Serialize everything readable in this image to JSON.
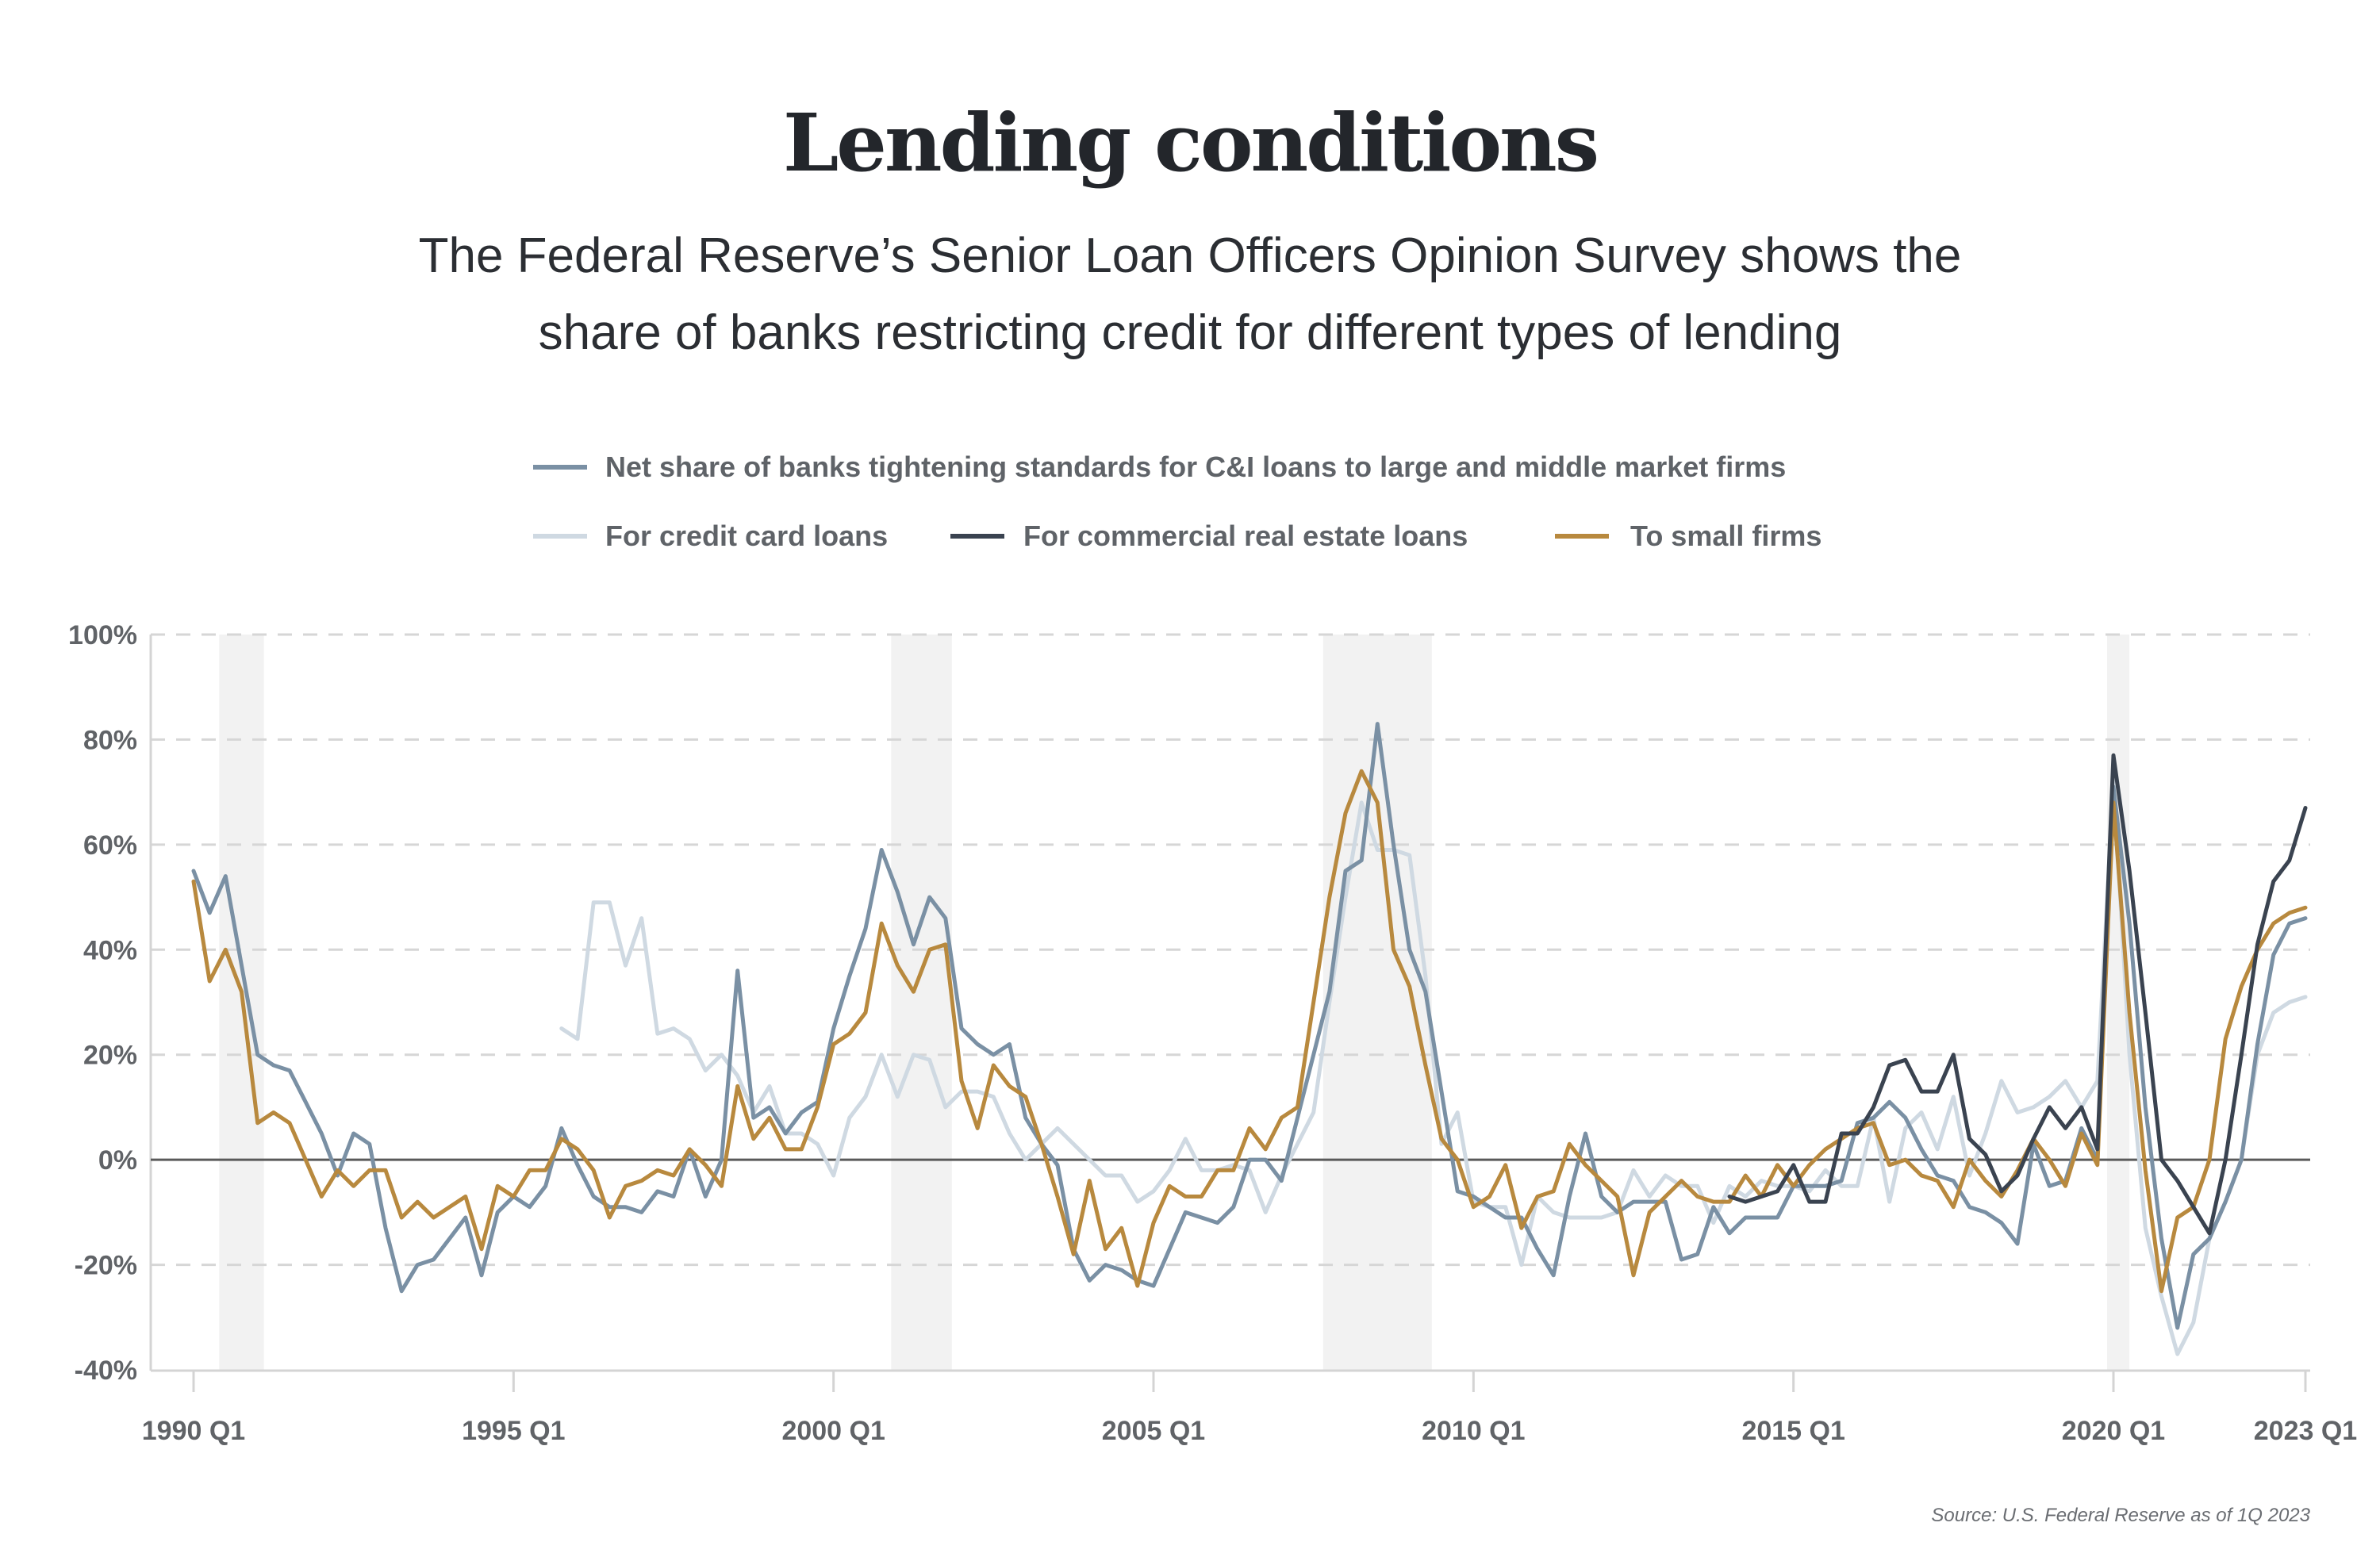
{
  "title": "Lending conditions",
  "subtitle_lines": [
    "The Federal Reserve’s Senior Loan Officers Opinion Survey shows the",
    "share of banks restricting credit for different types of lending"
  ],
  "source": "Source: U.S. Federal Reserve as of 1Q 2023",
  "chart_data": {
    "type": "line",
    "title": "Lending conditions",
    "xlabel": "",
    "ylabel": "",
    "x_start": "1990 Q1",
    "x_end": "2023 Q1",
    "x_frequency": "quarterly",
    "x_ticks": [
      {
        "label": "1990 Q1",
        "index": 0
      },
      {
        "label": "1995 Q1",
        "index": 20
      },
      {
        "label": "2000 Q1",
        "index": 40
      },
      {
        "label": "2005 Q1",
        "index": 60
      },
      {
        "label": "2010 Q1",
        "index": 80
      },
      {
        "label": "2015 Q1",
        "index": 100
      },
      {
        "label": "2020 Q1",
        "index": 120
      },
      {
        "label": "2023 Q1",
        "index": 132
      }
    ],
    "ylim": [
      -40,
      100
    ],
    "y_ticks": [
      {
        "label": "100%",
        "value": 100
      },
      {
        "label": "80%",
        "value": 80
      },
      {
        "label": "60%",
        "value": 60
      },
      {
        "label": "40%",
        "value": 40
      },
      {
        "label": "20%",
        "value": 20
      },
      {
        "label": "0%",
        "value": 0
      },
      {
        "label": "-20%",
        "value": -20
      },
      {
        "label": "-40%",
        "value": -40
      }
    ],
    "grid": true,
    "legend_placement": "top-center",
    "recessions": [
      {
        "from": "1990 Q3",
        "to": "1991 Q1",
        "start_index": 2,
        "end_index": 4
      },
      {
        "from": "2001 Q1",
        "to": "2001 Q4",
        "start_index": 44,
        "end_index": 47
      },
      {
        "from": "2007 Q4",
        "to": "2009 Q2",
        "start_index": 71,
        "end_index": 77
      },
      {
        "from": "2020 Q1",
        "to": "2020 Q2",
        "start_index": 120,
        "end_index": 120.6
      }
    ],
    "series": [
      {
        "name": "Net share of banks tightening standards for C&I loans to large and middle market firms",
        "color": "#7a90a4",
        "start_index": 0,
        "values": [
          55,
          47,
          54,
          37,
          20,
          18,
          17,
          11,
          5,
          -3,
          5,
          3,
          -13,
          -25,
          -20,
          -19,
          -15,
          -11,
          -22,
          -10,
          -7,
          -9,
          -5,
          6,
          -1,
          -7,
          -9,
          -9,
          -10,
          -6,
          -7,
          2,
          -7,
          0,
          36,
          8,
          10,
          5,
          9,
          11,
          25,
          35,
          44,
          59,
          51,
          41,
          50,
          46,
          25,
          22,
          20,
          22,
          8,
          3,
          -1,
          -17,
          -23,
          -20,
          -21,
          -23,
          -24,
          -17,
          -10,
          -11,
          -12,
          -9,
          0,
          0,
          -4,
          8,
          20,
          32,
          55,
          57,
          83,
          60,
          40,
          32,
          13,
          -6,
          -7,
          -9,
          -11,
          -11,
          -17,
          -22,
          -7,
          5,
          -7,
          -10,
          -8,
          -8,
          -8,
          -19,
          -18,
          -9,
          -14,
          -11,
          -11,
          -11,
          -5,
          -5,
          -5,
          -4,
          7,
          8,
          11,
          8,
          2,
          -3,
          -4,
          -9,
          -10,
          -12,
          -16,
          3,
          -5,
          -4,
          6,
          0,
          71,
          45,
          10,
          -15,
          -32,
          -18,
          -15,
          -8,
          0,
          22,
          39,
          45,
          46
        ]
      },
      {
        "name": "For credit card loans",
        "color": "#cfd9e2",
        "start_index": 23,
        "values": [
          25,
          23,
          49,
          49,
          37,
          46,
          24,
          25,
          23,
          17,
          20,
          16,
          9,
          14,
          5,
          5,
          3,
          -3,
          8,
          12,
          20,
          12,
          20,
          19,
          10,
          13,
          13,
          12,
          5,
          0,
          3,
          6,
          3,
          0,
          -3,
          -3,
          -8,
          -6,
          -2,
          4,
          -2,
          -2,
          -1,
          -2,
          -10,
          -3,
          3,
          9,
          30,
          50,
          68,
          59,
          59,
          58,
          35,
          3,
          9,
          -8,
          -9,
          -9,
          -20,
          -7,
          -10,
          -11,
          -11,
          -11,
          -10,
          -2,
          -7,
          -3,
          -5,
          -5,
          -12,
          -5,
          -7,
          -4,
          -5,
          -5,
          -6,
          -2,
          -5,
          -5,
          8,
          -8,
          6,
          9,
          2,
          12,
          -3,
          5,
          15,
          9,
          10,
          12,
          15,
          10,
          15,
          72,
          20,
          -13,
          -26,
          -37,
          -31,
          -15,
          -8,
          0,
          20,
          28,
          30,
          31
        ]
      },
      {
        "name": "For commercial real estate loans",
        "color": "#3a4350",
        "start_index": 96,
        "values": [
          -7,
          -8,
          -7,
          -6,
          -1,
          -8,
          -8,
          5,
          5,
          10,
          18,
          19,
          13,
          13,
          20,
          4,
          1,
          -6,
          -3,
          4,
          10,
          6,
          10,
          2,
          77,
          55,
          28,
          0,
          -4,
          -9,
          -14,
          0,
          20,
          41,
          53,
          57,
          67
        ]
      },
      {
        "name": "To small firms",
        "color": "#b8893e",
        "start_index": 0,
        "values": [
          53,
          34,
          40,
          32,
          7,
          9,
          7,
          0,
          -7,
          -2,
          -5,
          -2,
          -2,
          -11,
          -8,
          -11,
          -9,
          -7,
          -17,
          -5,
          -7,
          -2,
          -2,
          4,
          2,
          -2,
          -11,
          -5,
          -4,
          -2,
          -3,
          2,
          -1,
          -5,
          14,
          4,
          8,
          2,
          2,
          10,
          22,
          24,
          28,
          45,
          37,
          32,
          40,
          41,
          15,
          6,
          18,
          14,
          12,
          3,
          -7,
          -18,
          -4,
          -17,
          -13,
          -24,
          -12,
          -5,
          -7,
          -7,
          -2,
          -2,
          6,
          2,
          8,
          10,
          30,
          50,
          66,
          74,
          68,
          40,
          33,
          18,
          4,
          0,
          -9,
          -7,
          -1,
          -13,
          -7,
          -6,
          3,
          -1,
          -4,
          -7,
          -22,
          -10,
          -7,
          -4,
          -7,
          -8,
          -8,
          -3,
          -7,
          -1,
          -5,
          -1,
          2,
          4,
          6,
          7,
          -1,
          0,
          -3,
          -4,
          -9,
          0,
          -4,
          -7,
          -2,
          4,
          0,
          -5,
          5,
          -1,
          68,
          28,
          -2,
          -25,
          -11,
          -9,
          0,
          23,
          33,
          40,
          45,
          47,
          48
        ]
      }
    ]
  }
}
